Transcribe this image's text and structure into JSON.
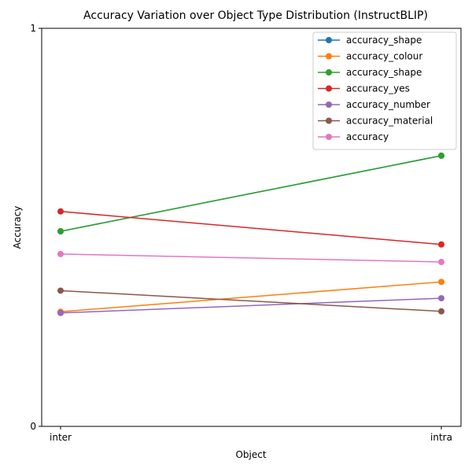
{
  "chart_data": {
    "type": "line",
    "title": "Accuracy Variation over Object Type Distribution (InstructBLIP)",
    "xlabel": "Object",
    "ylabel": "Accuracy",
    "categories": [
      "inter",
      "intra"
    ],
    "ylim": [
      0,
      1
    ],
    "yticks": [
      "0",
      "1"
    ],
    "grid": false,
    "legend_position": "top-right",
    "series": [
      {
        "name": "accuracy_shape",
        "color": "#1f77b4",
        "values": [
          0.49,
          0.68
        ]
      },
      {
        "name": "accuracy_colour",
        "color": "#ff7f0e",
        "values": [
          0.288,
          0.363
        ]
      },
      {
        "name": "accuracy_shape",
        "color": "#2ca02c",
        "values": [
          0.49,
          0.68
        ]
      },
      {
        "name": "accuracy_yes",
        "color": "#d62728",
        "values": [
          0.54,
          0.457
        ]
      },
      {
        "name": "accuracy_number",
        "color": "#9467bd",
        "values": [
          0.285,
          0.322
        ]
      },
      {
        "name": "accuracy_material",
        "color": "#8c564b",
        "values": [
          0.341,
          0.289
        ]
      },
      {
        "name": "accuracy",
        "color": "#e377c2",
        "values": [
          0.433,
          0.413
        ]
      }
    ]
  }
}
